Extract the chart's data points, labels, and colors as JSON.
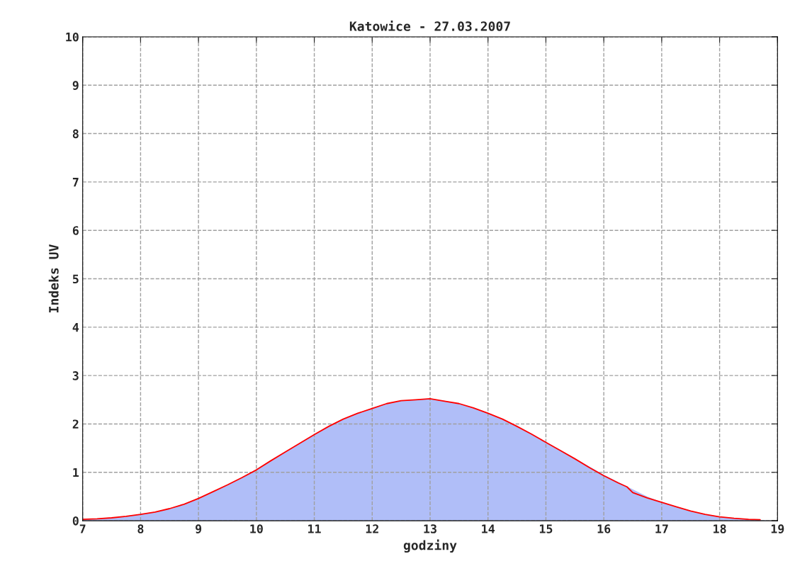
{
  "chart_data": {
    "type": "area",
    "title": "Katowice - 27.03.2007",
    "xlabel": "godziny",
    "ylabel": "Indeks UV",
    "xlim": [
      7,
      19
    ],
    "ylim": [
      0,
      10
    ],
    "xticks": [
      7,
      8,
      9,
      10,
      11,
      12,
      13,
      14,
      15,
      16,
      17,
      18,
      19
    ],
    "yticks": [
      0,
      1,
      2,
      3,
      4,
      5,
      6,
      7,
      8,
      9,
      10
    ],
    "grid": true,
    "series": [
      {
        "color": "#b0bef8",
        "x": [
          7.0,
          7.25,
          7.5,
          7.75,
          8.0,
          8.25,
          8.5,
          8.75,
          9.0,
          9.25,
          9.5,
          9.75,
          10.0,
          10.25,
          10.5,
          10.75,
          11.0,
          11.25,
          11.5,
          11.75,
          12.0,
          12.25,
          12.5,
          12.75,
          13.0,
          13.25,
          13.5,
          13.75,
          14.0,
          14.25,
          14.5,
          14.75,
          15.0,
          15.25,
          15.5,
          15.75,
          16.0,
          16.25,
          16.5,
          16.75,
          17.0,
          17.25,
          17.5,
          17.75,
          18.0,
          18.25,
          18.5,
          18.75,
          19.0
        ],
        "values": [
          0.03,
          0.04,
          0.06,
          0.09,
          0.13,
          0.18,
          0.25,
          0.34,
          0.46,
          0.6,
          0.74,
          0.89,
          1.06,
          1.24,
          1.42,
          1.6,
          1.78,
          1.95,
          2.1,
          2.22,
          2.33,
          2.42,
          2.48,
          2.5,
          2.51,
          2.48,
          2.42,
          2.33,
          2.23,
          2.1,
          1.96,
          1.8,
          1.63,
          1.46,
          1.29,
          1.12,
          0.95,
          0.8,
          0.65,
          0.5,
          0.38,
          0.29,
          0.2,
          0.13,
          0.08,
          0.05,
          0.03,
          0.01,
          0.0
        ]
      },
      {
        "type": "line",
        "color": "#ff0000",
        "x": [
          7.0,
          7.25,
          7.5,
          7.75,
          8.0,
          8.25,
          8.5,
          8.75,
          9.0,
          9.25,
          9.5,
          9.75,
          10.0,
          10.25,
          10.5,
          10.75,
          11.0,
          11.25,
          11.5,
          11.75,
          12.0,
          12.25,
          12.5,
          12.75,
          13.0,
          13.25,
          13.5,
          13.75,
          14.0,
          14.25,
          14.5,
          14.75,
          15.0,
          15.25,
          15.5,
          15.75,
          16.0,
          16.25,
          16.4,
          16.5,
          16.75,
          17.0,
          17.25,
          17.5,
          17.75,
          18.0,
          18.25,
          18.5,
          18.7
        ],
        "values": [
          0.03,
          0.04,
          0.06,
          0.09,
          0.13,
          0.18,
          0.25,
          0.34,
          0.46,
          0.6,
          0.74,
          0.89,
          1.05,
          1.24,
          1.42,
          1.6,
          1.78,
          1.95,
          2.1,
          2.22,
          2.32,
          2.42,
          2.48,
          2.5,
          2.52,
          2.47,
          2.42,
          2.33,
          2.22,
          2.1,
          1.95,
          1.79,
          1.62,
          1.45,
          1.28,
          1.1,
          0.93,
          0.78,
          0.7,
          0.58,
          0.47,
          0.38,
          0.29,
          0.2,
          0.13,
          0.08,
          0.05,
          0.03,
          0.02
        ]
      }
    ]
  }
}
